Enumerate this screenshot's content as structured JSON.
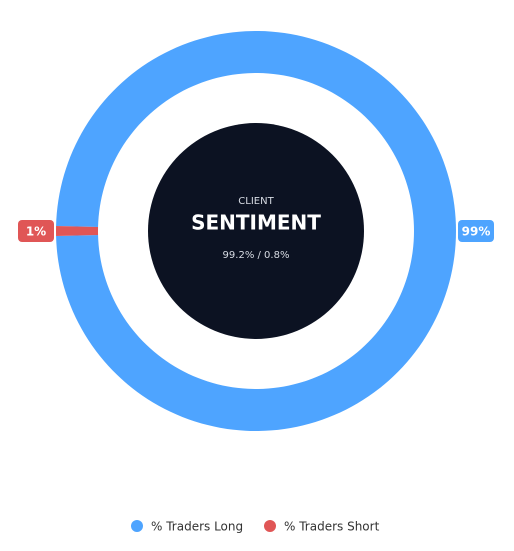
{
  "chart_data": {
    "type": "donut",
    "title": "SENTIMENT",
    "subtitle": "CLIENT",
    "center_text": "99.2% / 0.8%",
    "categories": [
      "% Traders Long",
      "% Traders Short"
    ],
    "values": [
      99.2,
      0.8
    ],
    "value_labels": [
      "99%",
      "1%"
    ],
    "colors": [
      "#4ea4ff",
      "#e05656"
    ],
    "legend": "bottom"
  }
}
